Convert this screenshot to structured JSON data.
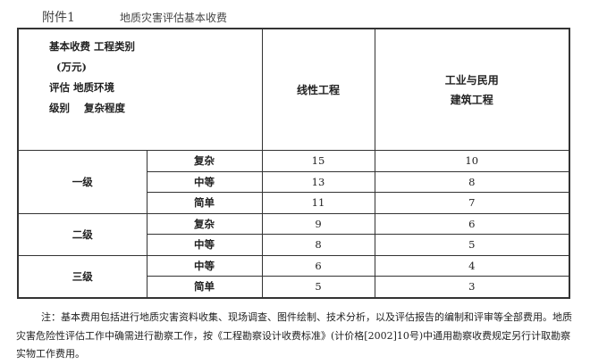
{
  "header": {
    "attachment": "附件1",
    "title": "地质灾害评估基本收费"
  },
  "table": {
    "corner": [
      "基本收费 工程类别",
      "  (万元)",
      "评估 地质环境",
      "级别    复杂程度"
    ],
    "columns": [
      "线性工程",
      "工业与民用\n建筑工程"
    ],
    "groups": [
      {
        "level": "一级",
        "rows": [
          {
            "complexity": "复杂",
            "linear": "15",
            "building": "10"
          },
          {
            "complexity": "中等",
            "linear": "13",
            "building": "8"
          },
          {
            "complexity": "简单",
            "linear": "11",
            "building": "7"
          }
        ]
      },
      {
        "level": "二级",
        "rows": [
          {
            "complexity": "复杂",
            "linear": "9",
            "building": "6"
          },
          {
            "complexity": "中等",
            "linear": "8",
            "building": "5"
          }
        ]
      },
      {
        "level": "三级",
        "rows": [
          {
            "complexity": "中等",
            "linear": "6",
            "building": "4"
          },
          {
            "complexity": "简单",
            "linear": "5",
            "building": "3"
          }
        ]
      }
    ]
  },
  "note": "注：基本费用包括进行地质灾害资料收集、现场调查、图件绘制、技术分析，以及评估报告的编制和评审等全部费用。地质灾害危险性评估工作中确需进行勘察工作，按《工程勘察设计收费标准》(计价格[2002]10号)中通用勘察收费规定另行计取勘察实物工作费用。"
}
